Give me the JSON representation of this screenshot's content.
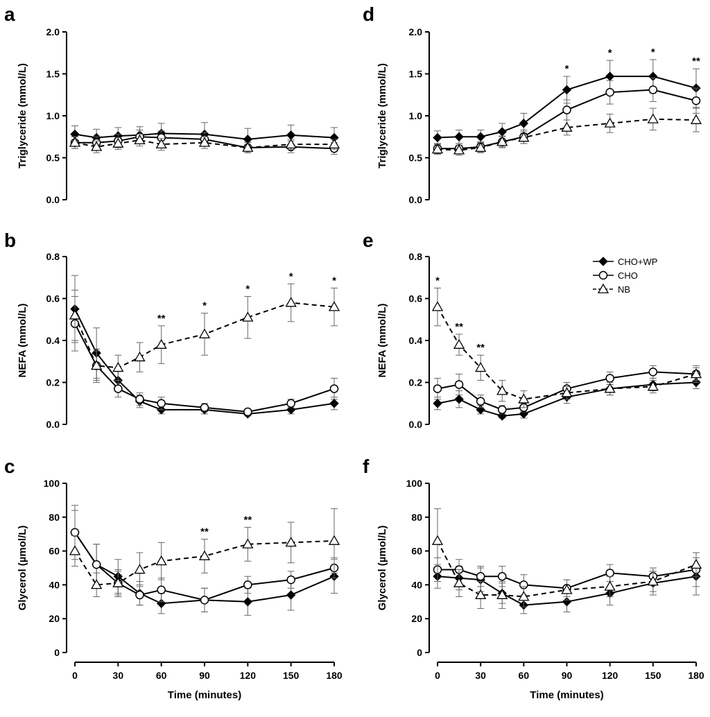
{
  "legend": {
    "entries": [
      {
        "name": "CHO+WP",
        "marker": "diamond",
        "dash": "solid"
      },
      {
        "name": "CHO",
        "marker": "circle",
        "dash": "solid"
      },
      {
        "name": "NB",
        "marker": "triangle",
        "dash": "dashed"
      }
    ]
  },
  "chart_data": [
    {
      "panel": "a",
      "type": "line",
      "xlabel": "",
      "ylabel": "Triglyceride (mmol/L)",
      "x": [
        0,
        15,
        30,
        45,
        60,
        90,
        120,
        150,
        180
      ],
      "xticks": [],
      "ylim": [
        0,
        2.0
      ],
      "yticks": [
        "0.0",
        "0.5",
        "1.0",
        "1.5",
        "2.0"
      ],
      "series": [
        {
          "name": "CHO+WP",
          "values": [
            0.78,
            0.74,
            0.76,
            0.77,
            0.79,
            0.78,
            0.72,
            0.77,
            0.74
          ],
          "errors": [
            0.1,
            0.1,
            0.1,
            0.1,
            0.12,
            0.14,
            0.13,
            0.12,
            0.12
          ]
        },
        {
          "name": "CHO",
          "values": [
            0.68,
            0.68,
            0.7,
            0.75,
            0.74,
            0.72,
            0.62,
            0.63,
            0.61
          ],
          "errors": [
            0.07,
            0.07,
            0.08,
            0.08,
            0.08,
            0.08,
            0.06,
            0.07,
            0.07
          ]
        },
        {
          "name": "NB",
          "values": [
            0.68,
            0.63,
            0.67,
            0.71,
            0.66,
            0.68,
            0.62,
            0.66,
            0.66
          ],
          "errors": [
            0.07,
            0.07,
            0.07,
            0.07,
            0.07,
            0.07,
            0.06,
            0.06,
            0.06
          ]
        }
      ],
      "annotations": []
    },
    {
      "panel": "d",
      "type": "line",
      "xlabel": "",
      "ylabel": "Triglyceride (mmol/L)",
      "x": [
        0,
        15,
        30,
        45,
        60,
        90,
        120,
        150,
        180
      ],
      "xticks": [],
      "ylim": [
        0,
        2.0
      ],
      "yticks": [
        "0.0",
        "0.5",
        "1.0",
        "1.5",
        "2.0"
      ],
      "series": [
        {
          "name": "CHO+WP",
          "values": [
            0.74,
            0.75,
            0.75,
            0.81,
            0.91,
            1.31,
            1.47,
            1.47,
            1.33
          ],
          "errors": [
            0.08,
            0.08,
            0.08,
            0.1,
            0.12,
            0.16,
            0.19,
            0.2,
            0.23
          ]
        },
        {
          "name": "CHO",
          "values": [
            0.61,
            0.61,
            0.63,
            0.69,
            0.75,
            1.07,
            1.28,
            1.31,
            1.18
          ],
          "errors": [
            0.06,
            0.06,
            0.06,
            0.07,
            0.08,
            0.12,
            0.14,
            0.14,
            0.15
          ]
        },
        {
          "name": "NB",
          "values": [
            0.6,
            0.59,
            0.62,
            0.69,
            0.74,
            0.86,
            0.91,
            0.96,
            0.95
          ],
          "errors": [
            0.06,
            0.06,
            0.06,
            0.06,
            0.07,
            0.09,
            0.11,
            0.13,
            0.14
          ]
        }
      ],
      "annotations": [
        {
          "x": 90,
          "text": "*"
        },
        {
          "x": 120,
          "text": "*"
        },
        {
          "x": 150,
          "text": "*"
        },
        {
          "x": 180,
          "text": "**"
        }
      ]
    },
    {
      "panel": "b",
      "type": "line",
      "xlabel": "",
      "ylabel": "NEFA (mmol/L)",
      "x": [
        0,
        15,
        30,
        45,
        60,
        90,
        120,
        150,
        180
      ],
      "xticks": [],
      "ylim": [
        0,
        0.8
      ],
      "yticks": [
        "0.0",
        "0.2",
        "0.4",
        "0.6",
        "0.8"
      ],
      "series": [
        {
          "name": "CHO+WP",
          "values": [
            0.55,
            0.34,
            0.21,
            0.11,
            0.07,
            0.07,
            0.05,
            0.07,
            0.1
          ],
          "errors": [
            0.16,
            0.12,
            0.05,
            0.03,
            0.02,
            0.02,
            0.01,
            0.02,
            0.03
          ]
        },
        {
          "name": "CHO",
          "values": [
            0.48,
            0.28,
            0.17,
            0.12,
            0.1,
            0.08,
            0.06,
            0.1,
            0.17
          ],
          "errors": [
            0.13,
            0.08,
            0.04,
            0.03,
            0.03,
            0.02,
            0.01,
            0.02,
            0.05
          ]
        },
        {
          "name": "NB",
          "values": [
            0.52,
            0.28,
            0.27,
            0.32,
            0.38,
            0.43,
            0.51,
            0.58,
            0.56
          ],
          "errors": [
            0.12,
            0.07,
            0.06,
            0.07,
            0.09,
            0.1,
            0.1,
            0.09,
            0.09
          ]
        }
      ],
      "annotations": [
        {
          "x": 60,
          "text": "**"
        },
        {
          "x": 90,
          "text": "*"
        },
        {
          "x": 120,
          "text": "*"
        },
        {
          "x": 150,
          "text": "*"
        },
        {
          "x": 180,
          "text": "*"
        }
      ]
    },
    {
      "panel": "e",
      "type": "line",
      "xlabel": "",
      "ylabel": "NEFA (mmol/L)",
      "x": [
        0,
        15,
        30,
        45,
        60,
        90,
        120,
        150,
        180
      ],
      "xticks": [],
      "ylim": [
        0,
        0.8
      ],
      "yticks": [
        "0.0",
        "0.2",
        "0.4",
        "0.6",
        "0.8"
      ],
      "series": [
        {
          "name": "CHO+WP",
          "values": [
            0.1,
            0.12,
            0.07,
            0.04,
            0.05,
            0.13,
            0.17,
            0.19,
            0.2
          ],
          "errors": [
            0.03,
            0.04,
            0.02,
            0.01,
            0.02,
            0.03,
            0.03,
            0.03,
            0.03
          ]
        },
        {
          "name": "CHO",
          "values": [
            0.17,
            0.19,
            0.11,
            0.07,
            0.08,
            0.17,
            0.22,
            0.25,
            0.24
          ],
          "errors": [
            0.05,
            0.05,
            0.03,
            0.02,
            0.02,
            0.03,
            0.03,
            0.03,
            0.03
          ]
        },
        {
          "name": "NB",
          "values": [
            0.56,
            0.38,
            0.27,
            0.16,
            0.12,
            0.15,
            0.17,
            0.18,
            0.24
          ],
          "errors": [
            0.09,
            0.05,
            0.06,
            0.05,
            0.04,
            0.03,
            0.03,
            0.03,
            0.04
          ]
        }
      ],
      "annotations": [
        {
          "x": 0,
          "text": "*"
        },
        {
          "x": 15,
          "text": "**"
        },
        {
          "x": 30,
          "text": "**"
        }
      ]
    },
    {
      "panel": "c",
      "type": "line",
      "xlabel": "Time (minutes)",
      "ylabel": "Glycerol (µmol/L)",
      "x": [
        0,
        15,
        30,
        45,
        60,
        90,
        120,
        150,
        180
      ],
      "xticks": [
        "0",
        "30",
        "60",
        "90",
        "120",
        "150",
        "180"
      ],
      "ylim": [
        0,
        100
      ],
      "yticks": [
        "0",
        "20",
        "40",
        "60",
        "80",
        "100"
      ],
      "series": [
        {
          "name": "CHO+WP",
          "values": [
            71,
            52,
            45,
            35,
            29,
            31,
            30,
            34,
            45
          ],
          "errors": [
            13,
            12,
            10,
            7,
            6,
            7,
            8,
            9,
            10
          ]
        },
        {
          "name": "CHO",
          "values": [
            71,
            52,
            41,
            34,
            37,
            31,
            40,
            43,
            50
          ],
          "errors": [
            16,
            12,
            8,
            6,
            7,
            7,
            5,
            5,
            6
          ]
        },
        {
          "name": "NB",
          "values": [
            60,
            40,
            41,
            49,
            54,
            57,
            64,
            65,
            66
          ],
          "errors": [
            9,
            7,
            7,
            10,
            11,
            10,
            10,
            12,
            19
          ]
        }
      ],
      "annotations": [
        {
          "x": 90,
          "text": "**"
        },
        {
          "x": 120,
          "text": "**"
        }
      ]
    },
    {
      "panel": "f",
      "type": "line",
      "xlabel": "Time (minutes)",
      "ylabel": "Glycerol (µmol/L)",
      "x": [
        0,
        15,
        30,
        45,
        60,
        90,
        120,
        150,
        180
      ],
      "xticks": [
        "0",
        "30",
        "60",
        "90",
        "120",
        "150",
        "180"
      ],
      "ylim": [
        0,
        100
      ],
      "yticks": [
        "0",
        "20",
        "40",
        "60",
        "80",
        "100"
      ],
      "series": [
        {
          "name": "CHO+WP",
          "values": [
            45,
            44,
            43,
            35,
            28,
            30,
            35,
            41,
            45
          ],
          "errors": [
            7,
            7,
            7,
            6,
            5,
            6,
            7,
            7,
            11
          ]
        },
        {
          "name": "CHO",
          "values": [
            49,
            49,
            45,
            45,
            40,
            38,
            47,
            45,
            49
          ],
          "errors": [
            7,
            6,
            6,
            6,
            6,
            5,
            5,
            5,
            10
          ]
        },
        {
          "name": "NB",
          "values": [
            66,
            41,
            34,
            34,
            33,
            37,
            39,
            42,
            52
          ],
          "errors": [
            19,
            8,
            8,
            8,
            6,
            6,
            6,
            6,
            7
          ]
        }
      ],
      "annotations": []
    }
  ]
}
